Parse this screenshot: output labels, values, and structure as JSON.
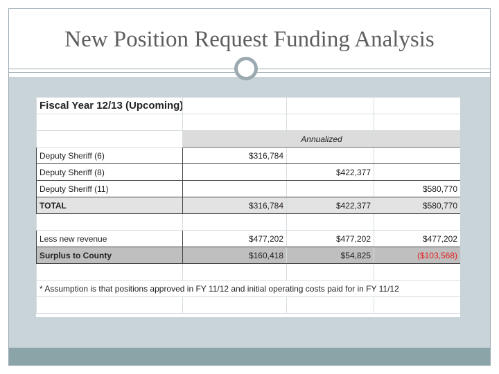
{
  "slide": {
    "title": "New Position Request Funding Analysis"
  },
  "sheet": {
    "heading": "Fiscal Year 12/13 (Upcoming):",
    "annualized_label": "Annualized",
    "rows": [
      {
        "label": "Deputy Sheriff (6)",
        "c1": "$316,784",
        "c2": "",
        "c3": ""
      },
      {
        "label": "Deputy Sheriff (8)",
        "c1": "",
        "c2": "$422,377",
        "c3": ""
      },
      {
        "label": "Deputy Sheriff (11)",
        "c1": "",
        "c2": "",
        "c3": "$580,770"
      }
    ],
    "total": {
      "label": "TOTAL",
      "c1": "$316,784",
      "c2": "$422,377",
      "c3": "$580,770"
    },
    "less_revenue": {
      "label": "Less new revenue",
      "c1": "$477,202",
      "c2": "$477,202",
      "c3": "$477,202"
    },
    "surplus": {
      "label": "Surplus to County",
      "c1": "$160,418",
      "c2": "$54,825",
      "c3": "($103,568)"
    },
    "note": "* Assumption is that positions approved in FY 11/12 and initial operating costs paid for in FY 11/12",
    "colors": {
      "negative": "#e02020",
      "total_fill": "#e3e3e3",
      "surplus_fill": "#bfbfbf"
    }
  }
}
